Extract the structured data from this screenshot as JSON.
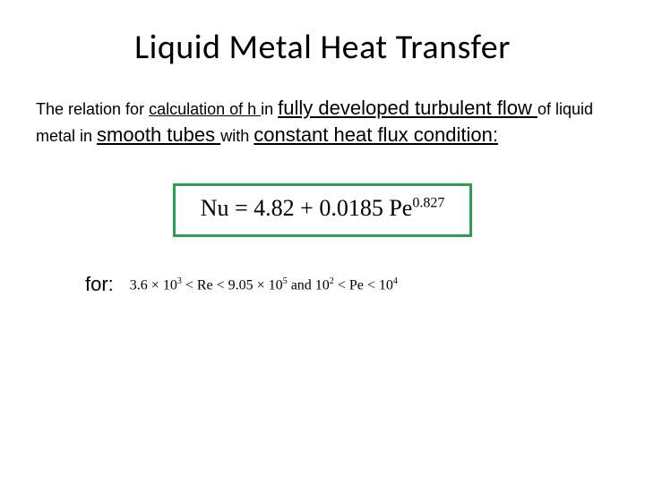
{
  "title": "Liquid Metal Heat Transfer",
  "desc": {
    "t1": "The relation for ",
    "t2": "calculation of h ",
    "t3": "in ",
    "t4": "fully developed turbulent flow ",
    "t5": "of liquid metal in ",
    "t6": "smooth tubes ",
    "t7": "with ",
    "t8": "constant heat flux condition:"
  },
  "formula": {
    "lhs": "Nu",
    "eq": " = ",
    "c1": "4.82",
    "plus": " + ",
    "c2": "0.0185",
    "var": " Pe",
    "exp": "0.827",
    "border_color": "#2e9e4f"
  },
  "for_label": "for:",
  "range": {
    "a1": "3.6 × 10",
    "a1e": "3",
    "lt1": " < Re < ",
    "a2": "9.05 × 10",
    "a2e": "5",
    "and": " and ",
    "b1": "10",
    "b1e": "2",
    "lt2": " < Pe < ",
    "b2": "10",
    "b2e": "4"
  },
  "colors": {
    "text": "#000000",
    "background": "#ffffff"
  }
}
